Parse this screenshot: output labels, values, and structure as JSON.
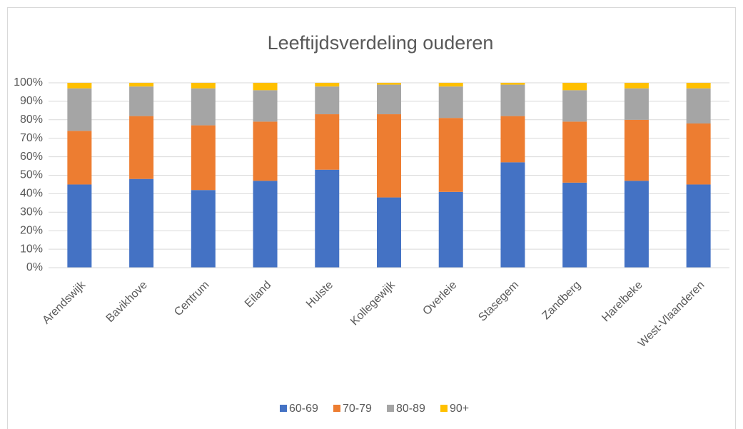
{
  "chart_data": {
    "type": "stacked_bar",
    "title": "Leeftijdsverdeling ouderen",
    "categories": [
      "Arendswijk",
      "Bavikhove",
      "Centrum",
      "Eiland",
      "Hulste",
      "Kollegewijk",
      "Overleie",
      "Stasegem",
      "Zandberg",
      "Harelbeke",
      "West-Vlaanderen"
    ],
    "series": [
      {
        "name": "60-69",
        "color": "#4472c4",
        "values": [
          45,
          48,
          42,
          47,
          53,
          38,
          41,
          57,
          46,
          47,
          45
        ]
      },
      {
        "name": "70-79",
        "color": "#ed7d31",
        "values": [
          29,
          34,
          35,
          32,
          30,
          45,
          40,
          25,
          33,
          33,
          33
        ]
      },
      {
        "name": "80-89",
        "color": "#a5a5a5",
        "values": [
          23,
          16,
          20,
          17,
          15,
          16,
          17,
          17,
          17,
          17,
          19
        ]
      },
      {
        "name": "90+",
        "color": "#ffc000",
        "values": [
          3,
          2,
          3,
          4,
          2,
          1,
          2,
          1,
          4,
          3,
          3
        ]
      }
    ],
    "ylim": [
      0,
      100
    ],
    "yticks": [
      {
        "value": 0,
        "label": "0%"
      },
      {
        "value": 10,
        "label": "10%"
      },
      {
        "value": 20,
        "label": "20%"
      },
      {
        "value": 30,
        "label": "30%"
      },
      {
        "value": 40,
        "label": "40%"
      },
      {
        "value": 50,
        "label": "50%"
      },
      {
        "value": 60,
        "label": "60%"
      },
      {
        "value": 70,
        "label": "70%"
      },
      {
        "value": 80,
        "label": "80%"
      },
      {
        "value": 90,
        "label": "90%"
      },
      {
        "value": 100,
        "label": "100%"
      }
    ],
    "grid": true,
    "legend": "bottom"
  }
}
